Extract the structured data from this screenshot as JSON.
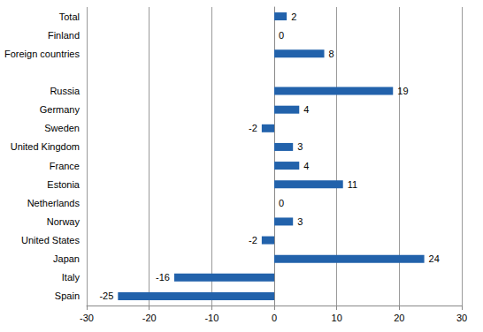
{
  "chart_data": {
    "type": "bar",
    "orientation": "horizontal",
    "categories": [
      "Total",
      "Finland",
      "Foreign countries",
      null,
      "Russia",
      "Germany",
      "Sweden",
      "United Kingdom",
      "France",
      "Estonia",
      "Netherlands",
      "Norway",
      "United States",
      "Japan",
      "Italy",
      "Spain"
    ],
    "values": [
      2,
      0,
      8,
      null,
      19,
      4,
      -2,
      3,
      4,
      11,
      0,
      3,
      -2,
      24,
      -16,
      -25
    ],
    "color": "#2262ab",
    "xlim": [
      -30,
      30
    ],
    "xticks": [
      -30,
      -20,
      -10,
      0,
      10,
      20,
      30
    ],
    "grid": true,
    "data_labels": true
  }
}
